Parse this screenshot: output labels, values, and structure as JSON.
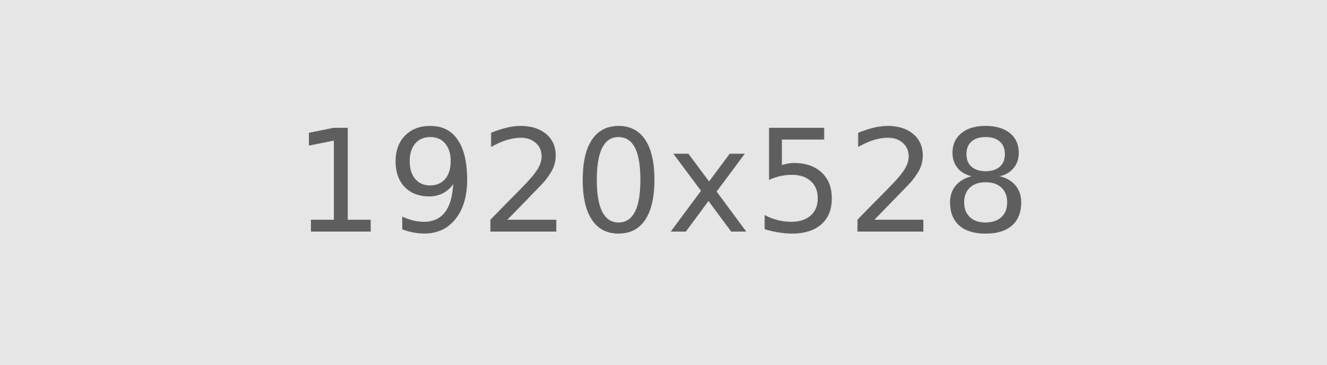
{
  "placeholder": {
    "label": "1920x528",
    "background_color": "#e6e6e6",
    "text_color": "#5e5e5e"
  }
}
